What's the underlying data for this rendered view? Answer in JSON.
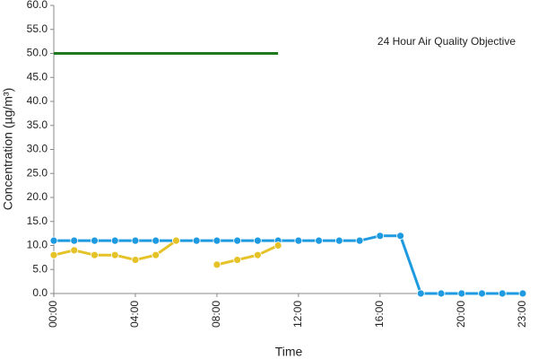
{
  "chart_data": {
    "type": "line",
    "xlabel": "Time",
    "ylabel": "Concentration (µg/m³)",
    "categories": [
      "00:00",
      null,
      null,
      null,
      "04:00",
      null,
      null,
      null,
      "08:00",
      null,
      null,
      null,
      "12:00",
      null,
      null,
      null,
      "16:00",
      null,
      null,
      null,
      "20:00",
      null,
      null,
      "23:00"
    ],
    "series": [
      {
        "name": "24 Hour Air Quality Objective",
        "color": "#1f7a1f",
        "markers": false,
        "values": [
          50,
          50,
          50,
          50,
          50,
          50,
          50,
          50,
          50,
          50,
          50,
          50,
          null,
          null,
          null,
          null,
          null,
          null,
          null,
          null,
          null,
          null,
          null,
          null
        ]
      },
      {
        "color": "#1e9be0",
        "markers": true,
        "values": [
          11,
          11,
          11,
          11,
          11,
          11,
          11,
          11,
          11,
          11,
          11,
          11,
          11,
          11,
          11,
          11,
          12,
          12,
          0,
          0,
          0,
          0,
          0,
          0
        ]
      },
      {
        "color": "#e6c229",
        "markers": true,
        "values": [
          8,
          9,
          8,
          8,
          7,
          8,
          11,
          null,
          6,
          7,
          8,
          10,
          null,
          null,
          null,
          null,
          null,
          null,
          null,
          null,
          null,
          null,
          null,
          null
        ]
      }
    ],
    "ylim": [
      0,
      60
    ],
    "yticks": [
      {
        "value": 0,
        "label": "0.0"
      },
      {
        "value": 5,
        "label": "5.0"
      },
      {
        "value": 10,
        "label": "10.0"
      },
      {
        "value": 15,
        "label": "15.0"
      },
      {
        "value": 20,
        "label": "20.0"
      },
      {
        "value": 25,
        "label": "25.0"
      },
      {
        "value": 30,
        "label": "30.0"
      },
      {
        "value": 35,
        "label": "35.0"
      },
      {
        "value": 40,
        "label": "40.0"
      },
      {
        "value": 45,
        "label": "45.0"
      },
      {
        "value": 50,
        "label": "50.0"
      },
      {
        "value": 55,
        "label": "55.0"
      },
      {
        "value": 60,
        "label": "60.0"
      }
    ],
    "grid": false
  }
}
